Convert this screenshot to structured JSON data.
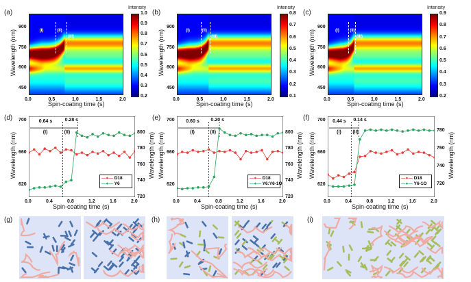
{
  "chart_data": [
    {
      "panel": "(a)",
      "type": "heatmap",
      "xlabel": "Spin-coating time (s)",
      "ylabel": "Wavelength (nm)",
      "xlim": [
        0,
        2.0
      ],
      "ylim": [
        400,
        1000
      ],
      "xticks": [
        "0.0",
        "0.5",
        "1.0",
        "1.5",
        "2.0"
      ],
      "yticks": [
        "450",
        "600",
        "750",
        "900"
      ],
      "colorbar": {
        "label": "Intensity",
        "range": [
          0.2,
          1.0
        ],
        "ticks": [
          "0.2",
          "0.3",
          "0.4",
          "0.5",
          "0.6",
          "0.7",
          "0.8",
          "0.9",
          "1.0"
        ]
      },
      "stages": [
        "(I)",
        "(II)",
        "(III)"
      ],
      "stage_boundaries": [
        0.57,
        0.8
      ],
      "transition_end": 0.75
    },
    {
      "panel": "(b)",
      "type": "heatmap",
      "xlabel": "Spin-coating time (s)",
      "ylabel": "Wavelength (nm)",
      "xlim": [
        0,
        2.0
      ],
      "ylim": [
        400,
        1000
      ],
      "xticks": [
        "0.0",
        "0.5",
        "1.0",
        "1.5",
        "2.0"
      ],
      "yticks": [
        "450",
        "600",
        "750",
        "900"
      ],
      "colorbar": {
        "label": "Intensity",
        "range": [
          0.1,
          0.8
        ],
        "ticks": [
          "0.1",
          "0.2",
          "0.3",
          "0.4",
          "0.5",
          "0.6",
          "0.7",
          "0.8"
        ]
      },
      "stages": [
        "(I)",
        "(II)",
        "(III)"
      ],
      "stage_boundaries": [
        0.5,
        0.7
      ],
      "transition_end": 0.66
    },
    {
      "panel": "(c)",
      "type": "heatmap",
      "xlabel": "Spin-coating time (s)",
      "ylabel": "Wavelength (nm)",
      "xlim": [
        0,
        2.0
      ],
      "ylim": [
        400,
        1000
      ],
      "xticks": [
        "0.0",
        "0.5",
        "1.0",
        "1.5",
        "2.0"
      ],
      "yticks": [
        "450",
        "600",
        "750",
        "900"
      ],
      "colorbar": {
        "label": "Intensity",
        "range": [
          0.2,
          0.9
        ],
        "ticks": [
          "0.2",
          "0.3",
          "0.4",
          "0.5",
          "0.6",
          "0.7",
          "0.8",
          "0.9"
        ]
      },
      "stages": [
        "(I)",
        "(II)",
        "(III)"
      ],
      "stage_boundaries": [
        0.44,
        0.58
      ],
      "transition_end": 0.55
    },
    {
      "panel": "(d)",
      "type": "scatter",
      "xlabel": "Spin-coating time (s)",
      "ylabel": "Wavelength (nm)",
      "ylabel_right": "Wavelength (nm)",
      "xlim": [
        0,
        2.0
      ],
      "ylim": [
        605,
        705
      ],
      "ylim_right": [
        720,
        820
      ],
      "xticks": [
        "0.0",
        "0.4",
        "0.8",
        "1.2",
        "1.6",
        "2.0"
      ],
      "yticks": [
        "620",
        "660",
        "700"
      ],
      "yticks_right": [
        "720",
        "740",
        "760",
        "780",
        "800"
      ],
      "annotations": {
        "t1": "0.64 s",
        "s1": "(I)",
        "t2": "0.28 s",
        "s2": "(II)"
      },
      "marks": [
        0.64,
        0.92
      ],
      "x": [
        0,
        0.1,
        0.2,
        0.3,
        0.4,
        0.5,
        0.6,
        0.7,
        0.8,
        0.9,
        1.0,
        1.1,
        1.2,
        1.3,
        1.4,
        1.5,
        1.6,
        1.7,
        1.8,
        1.9,
        2.0
      ],
      "series": [
        {
          "name": "D18",
          "axis": "left",
          "color": "#e8413c",
          "values": [
            660,
            664,
            658,
            665,
            662,
            666,
            660,
            664,
            663,
            658,
            660,
            657,
            661,
            659,
            662,
            657,
            660,
            656,
            661,
            654,
            662
          ]
        },
        {
          "name": "Y6",
          "axis": "right",
          "color": "#2ca25f",
          "values": [
            729,
            731,
            732,
            732,
            733,
            734,
            733,
            739,
            741,
            800,
            796,
            794,
            798,
            795,
            799,
            797,
            796,
            800,
            797,
            796,
            799
          ]
        }
      ]
    },
    {
      "panel": "(e)",
      "type": "scatter",
      "xlabel": "Spin-coating time (s)",
      "ylabel": "Wavelength (nm)",
      "ylabel_right": "Wavelength (nm)",
      "xlim": [
        0,
        2.0
      ],
      "ylim": [
        605,
        705
      ],
      "ylim_right": [
        720,
        820
      ],
      "xticks": [
        "0.0",
        "0.4",
        "0.8",
        "1.2",
        "1.6",
        "2.0"
      ],
      "yticks": [
        "620",
        "660",
        "700"
      ],
      "yticks_right": [
        "720",
        "740",
        "760",
        "780",
        "800"
      ],
      "annotations": {
        "t1": "0.60 s",
        "s1": "(I)",
        "t2": "0.20 s",
        "s2": "(II)"
      },
      "marks": [
        0.6,
        0.8
      ],
      "x": [
        0,
        0.1,
        0.2,
        0.3,
        0.4,
        0.5,
        0.6,
        0.7,
        0.8,
        0.9,
        1.0,
        1.1,
        1.2,
        1.3,
        1.4,
        1.5,
        1.6,
        1.7,
        1.8,
        1.9,
        2.0
      ],
      "series": [
        {
          "name": "D18",
          "axis": "left",
          "color": "#e8413c",
          "values": [
            658,
            661,
            660,
            663,
            661,
            662,
            664,
            660,
            662,
            661,
            663,
            660,
            652,
            662,
            660,
            661,
            663,
            652,
            661,
            662,
            660
          ]
        },
        {
          "name": "Y6:Y6-1O",
          "axis": "right",
          "color": "#2ca25f",
          "values": [
            731,
            730,
            731,
            731,
            732,
            732,
            733,
            745,
            805,
            800,
            797,
            796,
            799,
            797,
            798,
            796,
            797,
            797,
            795,
            799,
            800
          ]
        }
      ]
    },
    {
      "panel": "(f)",
      "type": "scatter",
      "xlabel": "Spin-coating time (s)",
      "ylabel": "Wavelength (nm)",
      "ylabel_right": "Wavelength (nm)",
      "xlim": [
        0,
        2.0
      ],
      "ylim": [
        605,
        705
      ],
      "ylim_right": [
        705,
        796
      ],
      "xticks": [
        "0.0",
        "0.4",
        "0.8",
        "1.2",
        "1.6",
        "2.0"
      ],
      "yticks": [
        "620",
        "660",
        "700"
      ],
      "yticks_right": [
        "720",
        "740",
        "760",
        "780"
      ],
      "annotations": {
        "t1": "0.44 s",
        "s1": "(I)",
        "t2": "0.14 s",
        "s2": "(II)"
      },
      "marks": [
        0.44,
        0.58
      ],
      "x": [
        0,
        0.1,
        0.2,
        0.3,
        0.4,
        0.5,
        0.6,
        0.7,
        0.8,
        0.9,
        1.0,
        1.1,
        1.2,
        1.3,
        1.4,
        1.5,
        1.6,
        1.7,
        1.8,
        1.9,
        2.0
      ],
      "series": [
        {
          "name": "D18",
          "axis": "left",
          "color": "#e8413c",
          "values": [
            633,
            628,
            632,
            630,
            634,
            636,
            655,
            656,
            662,
            660,
            659,
            661,
            663,
            658,
            660,
            664,
            659,
            661,
            660,
            657,
            654
          ]
        },
        {
          "name": "Y6-1O",
          "axis": "right",
          "color": "#2ca25f",
          "values": [
            718,
            717,
            717,
            717,
            718,
            719,
            770,
            780,
            781,
            780,
            781,
            780,
            781,
            780,
            779,
            780,
            781,
            780,
            781,
            780,
            780
          ]
        }
      ]
    }
  ],
  "schematics": [
    {
      "panel": "(g)",
      "acceptors": [
        "#4a72aa"
      ]
    },
    {
      "panel": "(h)",
      "acceptors": [
        "#4a72aa",
        "#a6bd5c"
      ]
    },
    {
      "panel": "(i)",
      "acceptors": [
        "#a6bd5c"
      ]
    }
  ],
  "colors": {
    "donor": "#f0aaa2",
    "background": "#dde4f7"
  }
}
